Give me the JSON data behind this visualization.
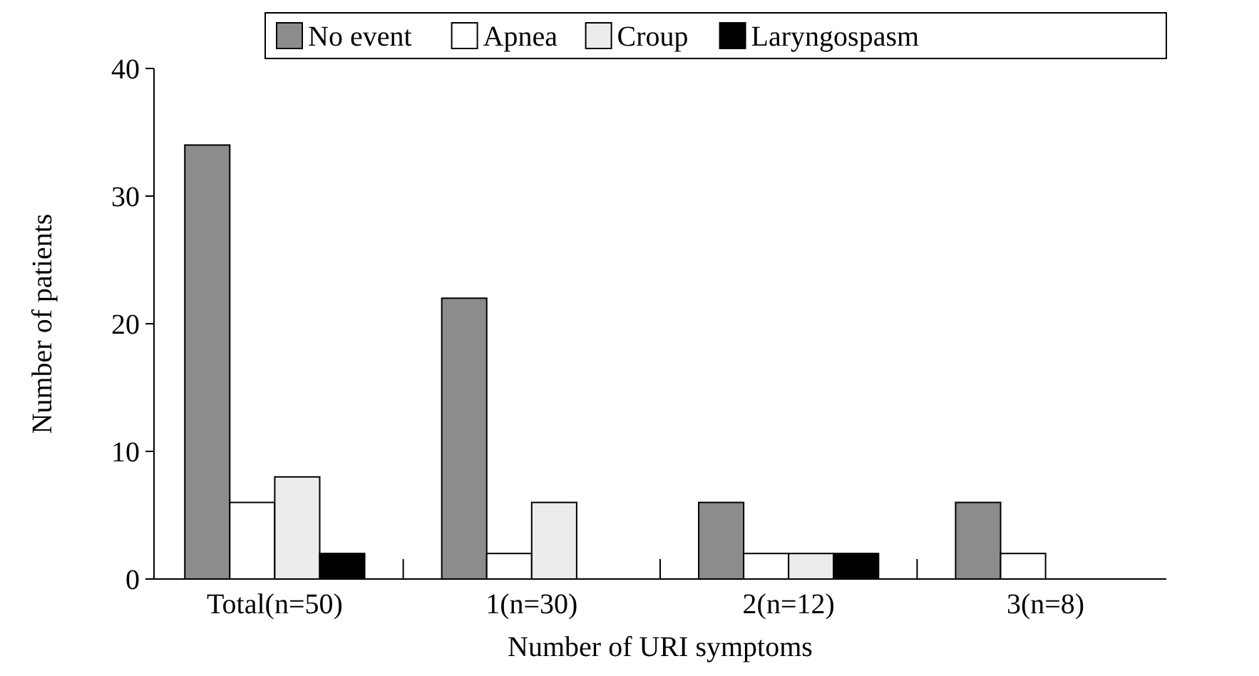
{
  "chart_data": {
    "type": "bar",
    "xlabel": "Number of URI symptoms",
    "ylabel": "Number of patients",
    "categories": [
      "Total(n=50)",
      "1(n=30)",
      "2(n=12)",
      "3(n=8)"
    ],
    "series": [
      {
        "name": "No event",
        "color": "#8c8c8c",
        "values": [
          34,
          22,
          6,
          6
        ]
      },
      {
        "name": "Apnea",
        "color": "#ffffff",
        "values": [
          6,
          2,
          2,
          2
        ]
      },
      {
        "name": "Croup",
        "color": "#ececec",
        "values": [
          8,
          6,
          2,
          0
        ]
      },
      {
        "name": "Laryngospasm",
        "color": "#000000",
        "values": [
          2,
          0,
          2,
          0
        ]
      }
    ],
    "ylim": [
      0,
      40
    ],
    "yticks": [
      0,
      10,
      20,
      30,
      40
    ],
    "grid": false,
    "legend": "top"
  }
}
